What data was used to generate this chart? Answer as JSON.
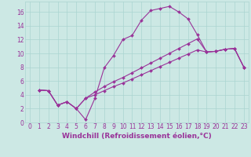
{
  "xlabel": "Windchill (Refroidissement éolien,°C)",
  "bg_color": "#cce8e4",
  "line_color": "#993399",
  "grid_color": "#aad4d0",
  "xlim": [
    -0.5,
    23.5
  ],
  "ylim": [
    0,
    17.5
  ],
  "xticks": [
    0,
    1,
    2,
    3,
    4,
    5,
    6,
    7,
    8,
    9,
    10,
    11,
    12,
    13,
    14,
    15,
    16,
    17,
    18,
    19,
    20,
    21,
    22,
    23
  ],
  "yticks": [
    0,
    2,
    4,
    6,
    8,
    10,
    12,
    14,
    16
  ],
  "line1_x": [
    1,
    2,
    3,
    4,
    5,
    6,
    7,
    8,
    9,
    10,
    11,
    12,
    13,
    14,
    15,
    16,
    17,
    18,
    19,
    20,
    21,
    22,
    23
  ],
  "line1_y": [
    4.7,
    4.6,
    2.5,
    3.0,
    2.0,
    0.4,
    3.5,
    7.9,
    9.7,
    12.0,
    12.6,
    14.8,
    16.2,
    16.5,
    16.8,
    16.0,
    15.0,
    12.7,
    10.2,
    10.3,
    10.6,
    10.7,
    8.0
  ],
  "line2_x": [
    1,
    2,
    3,
    4,
    5,
    6,
    7,
    8,
    9,
    10,
    11,
    12,
    13,
    14,
    15,
    16,
    17,
    18,
    19,
    20,
    21,
    22,
    23
  ],
  "line2_y": [
    4.7,
    4.6,
    2.5,
    3.0,
    2.0,
    3.5,
    4.0,
    4.6,
    5.2,
    5.7,
    6.3,
    6.9,
    7.5,
    8.1,
    8.7,
    9.3,
    9.9,
    10.5,
    10.2,
    10.3,
    10.6,
    10.7,
    8.0
  ],
  "line3_x": [
    1,
    2,
    3,
    4,
    5,
    6,
    7,
    8,
    9,
    10,
    11,
    12,
    13,
    14,
    15,
    16,
    17,
    18,
    19,
    20,
    21,
    22,
    23
  ],
  "line3_y": [
    4.7,
    4.6,
    2.5,
    3.0,
    2.0,
    3.5,
    4.4,
    5.2,
    5.9,
    6.5,
    7.2,
    7.9,
    8.6,
    9.3,
    10.0,
    10.7,
    11.4,
    12.1,
    10.2,
    10.3,
    10.6,
    10.7,
    8.0
  ],
  "marker": "D",
  "markersize": 2.0,
  "linewidth": 0.8,
  "tick_fontsize": 5.5,
  "xlabel_fontsize": 6.5
}
